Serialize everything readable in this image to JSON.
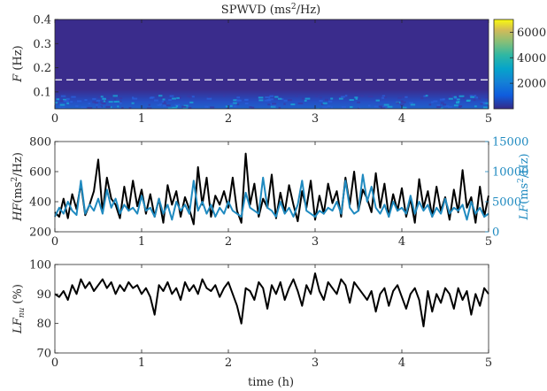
{
  "chart_data": [
    {
      "type": "heatmap",
      "title": "SPWVD (ms²/Hz)",
      "ylabel": "F (Hz)",
      "xlim": [
        0,
        5
      ],
      "ylim": [
        0.03,
        0.4
      ],
      "xticks": [
        "0",
        "1",
        "2",
        "3",
        "4",
        "5"
      ],
      "yticks": [
        "0.1",
        "0.2",
        "0.3",
        "0.4"
      ],
      "colorbar": {
        "ticks": [
          "2000",
          "4000",
          "6000"
        ],
        "range": [
          0,
          7000
        ]
      },
      "dashed_line_F": 0.15,
      "colors": {
        "background": "#3a2c8c",
        "dashed": "#ffffff"
      },
      "energy_band_F": [
        0.03,
        0.11
      ]
    },
    {
      "type": "line",
      "ylabel": "HF(ms²/Hz)",
      "y2label": "LF(ms²/Hz)",
      "xlim": [
        0,
        5
      ],
      "ylim": [
        200,
        800
      ],
      "y2lim": [
        0,
        15000
      ],
      "xticks": [
        "0",
        "1",
        "2",
        "3",
        "4",
        "5"
      ],
      "yticks": [
        "200",
        "400",
        "600",
        "800"
      ],
      "y2ticks": [
        "0",
        "5000",
        "10000",
        "15000"
      ],
      "series": [
        {
          "color": "#000000",
          "axis": "left",
          "x": [
            0,
            0.05,
            0.1,
            0.15,
            0.2,
            0.25,
            0.3,
            0.35,
            0.4,
            0.45,
            0.5,
            0.55,
            0.6,
            0.65,
            0.7,
            0.75,
            0.8,
            0.85,
            0.9,
            0.95,
            1.0,
            1.05,
            1.1,
            1.15,
            1.2,
            1.25,
            1.3,
            1.35,
            1.4,
            1.45,
            1.5,
            1.55,
            1.6,
            1.65,
            1.7,
            1.75,
            1.8,
            1.85,
            1.9,
            1.95,
            2.0,
            2.05,
            2.1,
            2.15,
            2.2,
            2.25,
            2.3,
            2.35,
            2.4,
            2.45,
            2.5,
            2.55,
            2.6,
            2.65,
            2.7,
            2.75,
            2.8,
            2.85,
            2.9,
            2.95,
            3.0,
            3.05,
            3.1,
            3.15,
            3.2,
            3.25,
            3.3,
            3.35,
            3.4,
            3.45,
            3.5,
            3.55,
            3.6,
            3.65,
            3.7,
            3.75,
            3.8,
            3.85,
            3.9,
            3.95,
            4.0,
            4.05,
            4.1,
            4.15,
            4.2,
            4.25,
            4.3,
            4.35,
            4.4,
            4.45,
            4.5,
            4.55,
            4.6,
            4.65,
            4.7,
            4.75,
            4.8,
            4.85,
            4.9,
            4.95,
            5.0
          ],
          "y": [
            330,
            300,
            420,
            290,
            450,
            350,
            520,
            310,
            380,
            470,
            680,
            330,
            560,
            420,
            380,
            290,
            500,
            340,
            540,
            370,
            480,
            320,
            450,
            300,
            420,
            260,
            510,
            380,
            470,
            300,
            430,
            350,
            250,
            630,
            380,
            560,
            300,
            440,
            380,
            470,
            360,
            560,
            340,
            260,
            720,
            380,
            520,
            300,
            420,
            360,
            580,
            290,
            460,
            330,
            510,
            380,
            270,
            470,
            360,
            540,
            280,
            440,
            320,
            520,
            390,
            470,
            300,
            560,
            380,
            600,
            340,
            480,
            420,
            330,
            590,
            360,
            520,
            300,
            450,
            340,
            490,
            300,
            420,
            260,
            550,
            360,
            470,
            300,
            500,
            340,
            430,
            280,
            480,
            330,
            610,
            360,
            430,
            260,
            500,
            300,
            440
          ]
        },
        {
          "color": "#1f8ac0",
          "axis": "right",
          "x": [
            0,
            0.05,
            0.1,
            0.15,
            0.2,
            0.25,
            0.3,
            0.35,
            0.4,
            0.45,
            0.5,
            0.55,
            0.6,
            0.65,
            0.7,
            0.75,
            0.8,
            0.85,
            0.9,
            0.95,
            1.0,
            1.05,
            1.1,
            1.15,
            1.2,
            1.25,
            1.3,
            1.35,
            1.4,
            1.45,
            1.5,
            1.55,
            1.6,
            1.65,
            1.7,
            1.75,
            1.8,
            1.85,
            1.9,
            1.95,
            2.0,
            2.05,
            2.1,
            2.15,
            2.2,
            2.25,
            2.3,
            2.35,
            2.4,
            2.45,
            2.5,
            2.55,
            2.6,
            2.65,
            2.7,
            2.75,
            2.8,
            2.85,
            2.9,
            2.95,
            3.0,
            3.05,
            3.1,
            3.15,
            3.2,
            3.25,
            3.3,
            3.35,
            3.4,
            3.45,
            3.5,
            3.55,
            3.6,
            3.65,
            3.7,
            3.75,
            3.8,
            3.85,
            3.9,
            3.95,
            4.0,
            4.05,
            4.1,
            4.15,
            4.2,
            4.25,
            4.3,
            4.35,
            4.4,
            4.45,
            4.5,
            4.55,
            4.6,
            4.65,
            4.7,
            4.75,
            4.8,
            4.85,
            4.9,
            4.95,
            5.0
          ],
          "y": [
            2500,
            4000,
            3000,
            5000,
            3500,
            2800,
            8500,
            3000,
            4500,
            3500,
            5500,
            3000,
            7000,
            4000,
            5500,
            3000,
            4500,
            3500,
            4000,
            3000,
            6000,
            3500,
            4000,
            2500,
            5500,
            3000,
            4500,
            2000,
            5000,
            3500,
            4500,
            3000,
            8500,
            3500,
            5000,
            3000,
            4500,
            2500,
            4000,
            3000,
            5000,
            3500,
            3000,
            2500,
            6500,
            4000,
            3500,
            3000,
            9000,
            4000,
            3500,
            2500,
            5000,
            3000,
            4000,
            2500,
            4500,
            8500,
            3500,
            3000,
            2500,
            3500,
            3000,
            4000,
            3500,
            5000,
            3000,
            8500,
            4000,
            3000,
            3500,
            9500,
            5000,
            7500,
            4000,
            3000,
            4500,
            2500,
            5000,
            3500,
            4000,
            3000,
            6000,
            3000,
            5000,
            3500,
            4500,
            2500,
            4000,
            3000,
            5500,
            3000,
            4000,
            3500,
            4500,
            2000,
            5000,
            3000,
            4000,
            2500,
            3000
          ]
        }
      ]
    },
    {
      "type": "line",
      "ylabel": "LFnu (%)",
      "xlabel": "time (h)",
      "xlim": [
        0,
        5
      ],
      "ylim": [
        70,
        100
      ],
      "xticks": [
        "0",
        "1",
        "2",
        "3",
        "4",
        "5"
      ],
      "yticks": [
        "70",
        "80",
        "90",
        "100"
      ],
      "series": [
        {
          "color": "#000000",
          "x": [
            0,
            0.05,
            0.1,
            0.15,
            0.2,
            0.25,
            0.3,
            0.35,
            0.4,
            0.45,
            0.5,
            0.55,
            0.6,
            0.65,
            0.7,
            0.75,
            0.8,
            0.85,
            0.9,
            0.95,
            1.0,
            1.05,
            1.1,
            1.15,
            1.2,
            1.25,
            1.3,
            1.35,
            1.4,
            1.45,
            1.5,
            1.55,
            1.6,
            1.65,
            1.7,
            1.75,
            1.8,
            1.85,
            1.9,
            1.95,
            2.0,
            2.05,
            2.1,
            2.15,
            2.2,
            2.25,
            2.3,
            2.35,
            2.4,
            2.45,
            2.5,
            2.55,
            2.6,
            2.65,
            2.7,
            2.75,
            2.8,
            2.85,
            2.9,
            2.95,
            3.0,
            3.05,
            3.1,
            3.15,
            3.2,
            3.25,
            3.3,
            3.35,
            3.4,
            3.45,
            3.5,
            3.55,
            3.6,
            3.65,
            3.7,
            3.75,
            3.8,
            3.85,
            3.9,
            3.95,
            4.0,
            4.05,
            4.1,
            4.15,
            4.2,
            4.25,
            4.3,
            4.35,
            4.4,
            4.45,
            4.5,
            4.55,
            4.6,
            4.65,
            4.7,
            4.75,
            4.8,
            4.85,
            4.9,
            4.95,
            5.0
          ],
          "y": [
            90,
            89,
            91,
            88,
            93,
            90,
            95,
            92,
            94,
            91,
            93,
            95,
            92,
            94,
            90,
            93,
            91,
            94,
            92,
            93,
            90,
            92,
            89,
            83,
            93,
            91,
            94,
            90,
            92,
            88,
            94,
            91,
            93,
            90,
            95,
            92,
            91,
            93,
            89,
            92,
            94,
            90,
            86,
            80,
            92,
            91,
            88,
            94,
            92,
            85,
            93,
            90,
            94,
            88,
            92,
            95,
            91,
            86,
            93,
            90,
            97,
            91,
            88,
            94,
            92,
            90,
            95,
            93,
            87,
            94,
            92,
            90,
            88,
            91,
            84,
            90,
            92,
            86,
            91,
            93,
            89,
            85,
            90,
            92,
            88,
            79,
            91,
            84,
            90,
            87,
            92,
            90,
            85,
            92,
            88,
            91,
            83,
            90,
            86,
            92,
            90
          ]
        }
      ]
    }
  ]
}
